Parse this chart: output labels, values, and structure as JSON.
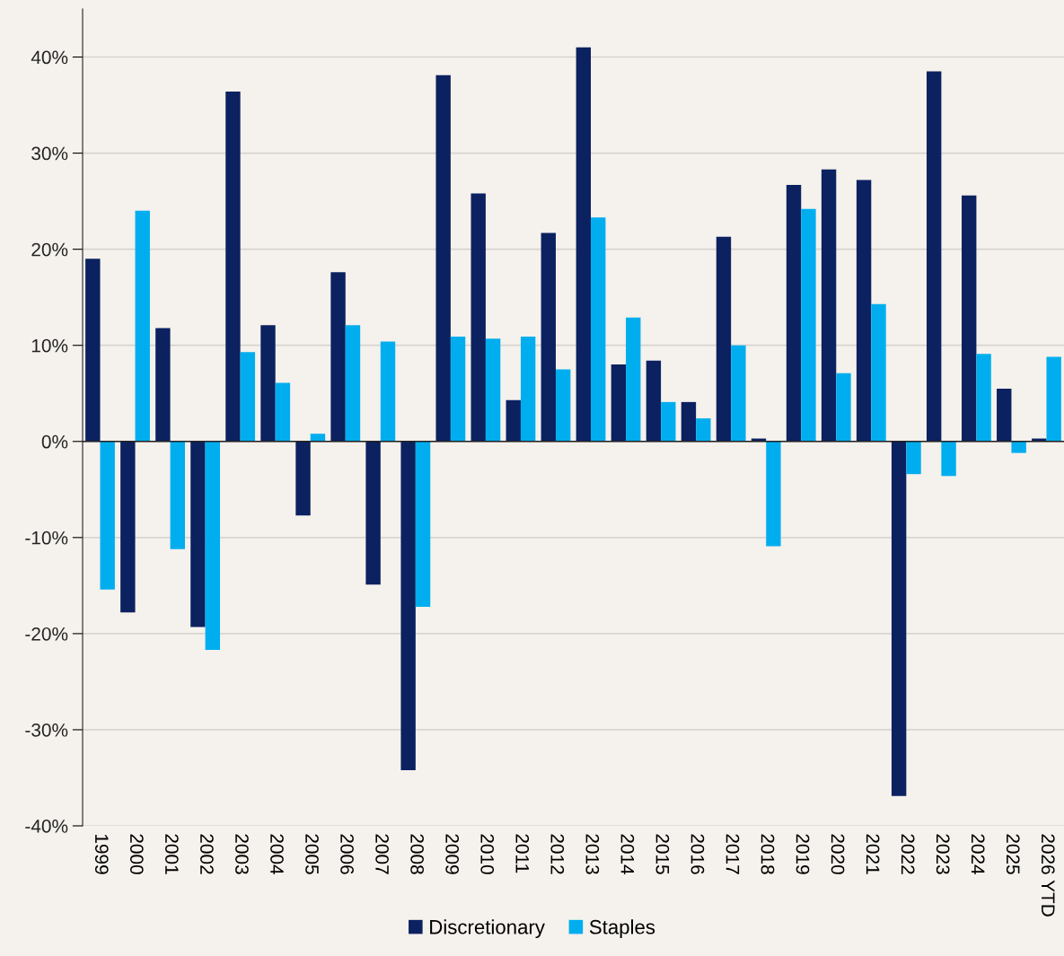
{
  "chart_data": {
    "type": "bar",
    "categories": [
      "1999",
      "2000",
      "2001",
      "2002",
      "2003",
      "2004",
      "2005",
      "2006",
      "2007",
      "2008",
      "2009",
      "2010",
      "2011",
      "2012",
      "2013",
      "2014",
      "2015",
      "2016",
      "2017",
      "2018",
      "2019",
      "2020",
      "2021",
      "2022",
      "2023",
      "2024",
      "2025",
      "2026 YTD"
    ],
    "series": [
      {
        "name": "Discretionary",
        "color": "#0b2160",
        "values": [
          19.0,
          -17.8,
          11.8,
          -19.3,
          36.4,
          12.1,
          -7.7,
          17.6,
          -14.9,
          -34.2,
          38.1,
          25.8,
          4.3,
          21.7,
          41.0,
          8.0,
          8.4,
          4.1,
          21.3,
          0.3,
          26.7,
          28.3,
          27.2,
          -36.9,
          38.5,
          25.6,
          5.5,
          0.3
        ]
      },
      {
        "name": "Staples",
        "color": "#00aeef",
        "values": [
          -15.4,
          24.0,
          -11.2,
          -21.7,
          9.3,
          6.1,
          0.8,
          12.1,
          10.4,
          -17.2,
          10.9,
          10.7,
          10.9,
          7.5,
          23.3,
          12.9,
          4.1,
          2.4,
          10.0,
          -10.9,
          24.2,
          7.1,
          14.3,
          -3.4,
          -3.6,
          9.1,
          -1.2,
          8.8
        ]
      }
    ],
    "ylim": [
      -40,
      45
    ],
    "yticks": [
      {
        "value": -40,
        "label": "-40%"
      },
      {
        "value": -30,
        "label": "-30%"
      },
      {
        "value": -20,
        "label": "-20%"
      },
      {
        "value": -10,
        "label": "-10%"
      },
      {
        "value": 0,
        "label": "0%"
      },
      {
        "value": 10,
        "label": "10%"
      },
      {
        "value": 20,
        "label": "20%"
      },
      {
        "value": 30,
        "label": "30%"
      },
      {
        "value": 40,
        "label": "40%"
      }
    ],
    "grid": "y",
    "legend": "bottom"
  }
}
